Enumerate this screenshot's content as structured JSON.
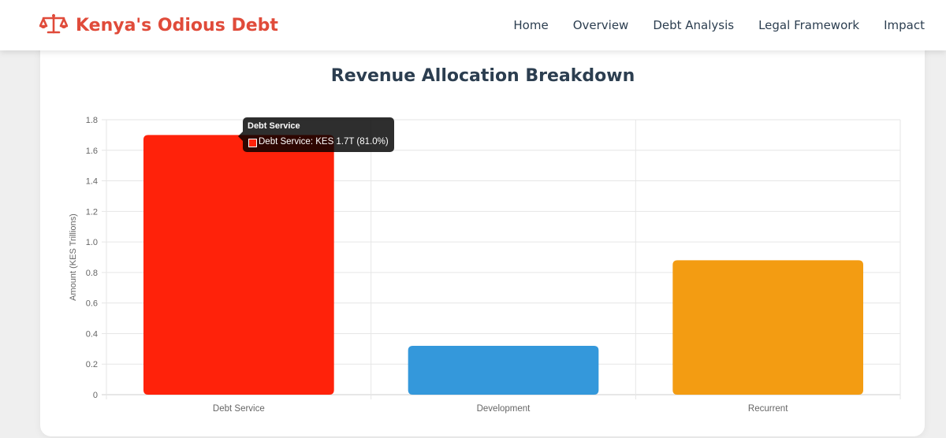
{
  "nav": {
    "brand": "Kenya's Odious Debt",
    "brand_icon": "balance-scale-icon",
    "links": [
      "Home",
      "Overview",
      "Debt Analysis",
      "Legal Framework",
      "Impact"
    ]
  },
  "colors": {
    "brand": "#e04b3a",
    "heading": "#2c3e50",
    "debt_service": "#ff220a",
    "development": "#3498db",
    "recurrent": "#f39c12"
  },
  "tooltip": {
    "title": "Debt Service",
    "body": "Debt Service: KES 1.7T (81.0%)",
    "swatch_color": "#ff220a"
  },
  "chart_data": {
    "type": "bar",
    "title": "Revenue Allocation Breakdown",
    "categories": [
      "Debt Service",
      "Development",
      "Recurrent"
    ],
    "values": [
      1.7,
      0.32,
      0.88
    ],
    "colors": [
      "#ff220a",
      "#3498db",
      "#f39c12"
    ],
    "xlabel": "",
    "ylabel": "Amount (KES Trillions)",
    "ylim": [
      0,
      1.8
    ],
    "yticks": [
      "0",
      "0.2",
      "0.4",
      "0.6",
      "0.8",
      "1.0",
      "1.2",
      "1.4",
      "1.6",
      "1.8"
    ],
    "ytick_values": [
      0,
      0.2,
      0.4,
      0.6,
      0.8,
      1.0,
      1.2,
      1.4,
      1.6,
      1.8
    ],
    "grid": true,
    "legend": "none"
  }
}
